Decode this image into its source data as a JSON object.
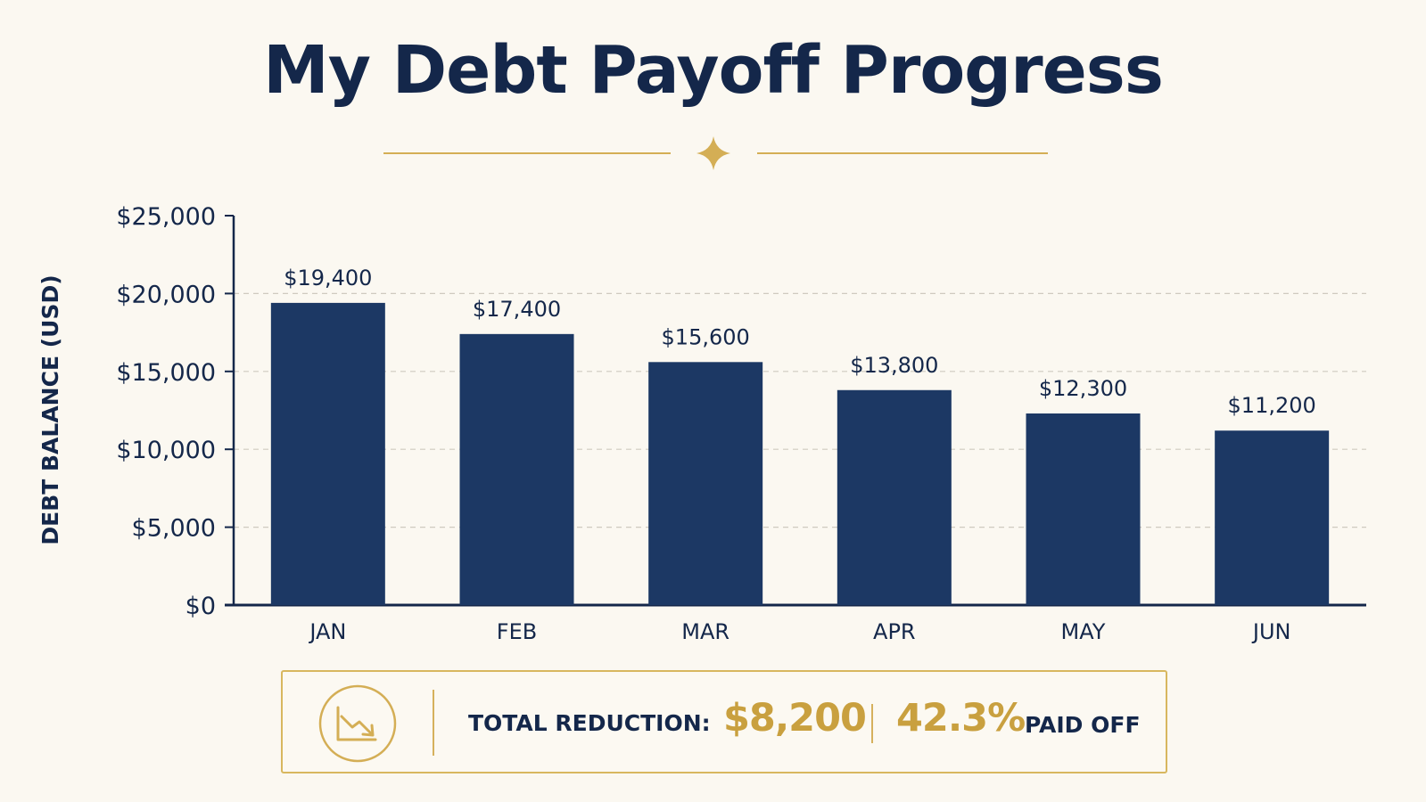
{
  "page": {
    "title": "My Debt Payoff Progress"
  },
  "chart_data": {
    "type": "bar",
    "title": "My Debt Payoff Progress",
    "xlabel": "",
    "ylabel": "DEBT BALANCE (USD)",
    "categories": [
      "JAN",
      "FEB",
      "MAR",
      "APR",
      "MAY",
      "JUN"
    ],
    "values": [
      19400,
      17400,
      15600,
      13800,
      12300,
      11200
    ],
    "data_labels": [
      "$19,400",
      "$17,400",
      "$15,600",
      "$13,800",
      "$12,300",
      "$11,200"
    ],
    "ylim": [
      0,
      25000
    ],
    "yticks": [
      0,
      5000,
      10000,
      15000,
      20000,
      25000
    ],
    "ytick_labels": [
      "$0",
      "$5,000",
      "$10,000",
      "$15,000",
      "$20,000",
      "$25,000"
    ],
    "grid": "horizontal dashed",
    "legend": "none",
    "colors": {
      "bar": "#1c3864",
      "axis": "#14274a",
      "grid": "#cfcac0",
      "accent": "#d4ae55"
    }
  },
  "summary": {
    "icon": "trend-down-chart-icon",
    "label": "TOTAL REDUCTION:",
    "amount": "$8,200",
    "percent": "42.3%",
    "suffix": "PAID OFF"
  }
}
